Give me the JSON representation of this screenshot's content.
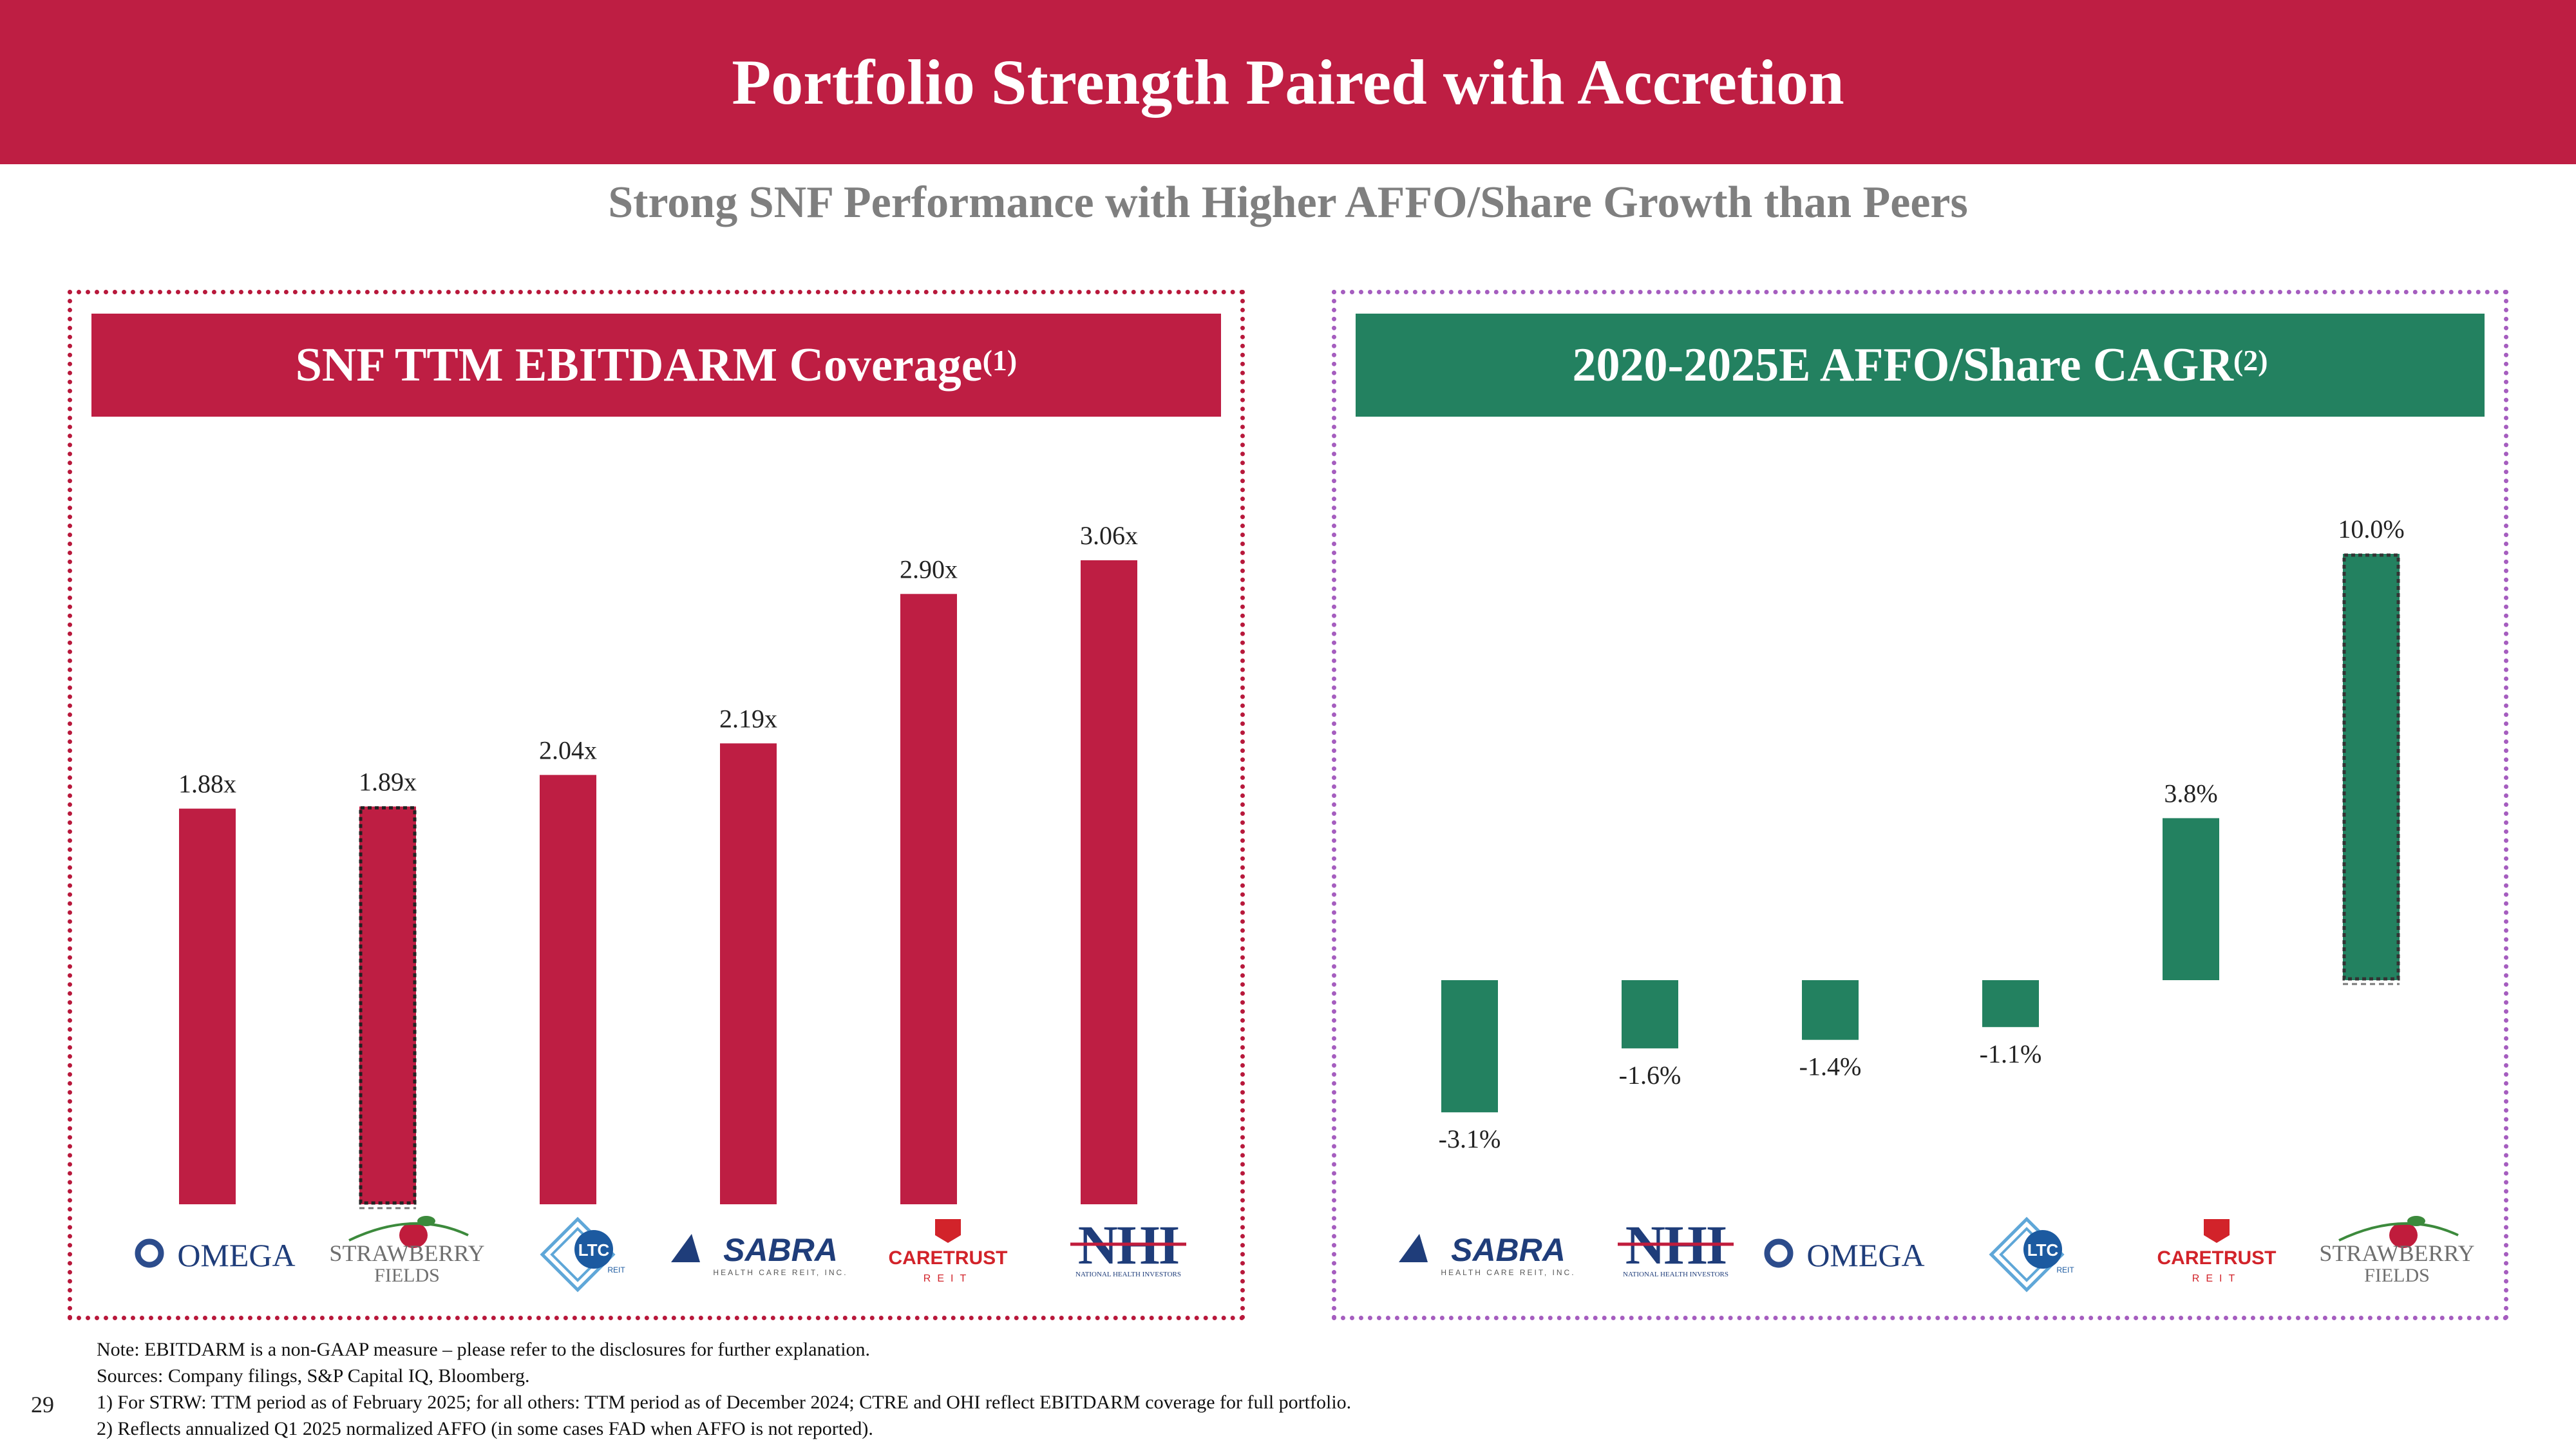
{
  "title": "Portfolio Strength Paired with Accretion",
  "subtitle": "Strong SNF Performance with Higher AFFO/Share Growth than Peers",
  "colors": {
    "banner": "#be1e43",
    "left_bar": "#be1e43",
    "right_bar": "#238160",
    "subtitle": "#7f7f7f"
  },
  "left_panel": {
    "heading": "SNF TTM EBITDARM Coverage",
    "heading_sup": "(1)"
  },
  "right_panel": {
    "heading": "2020-2025E AFFO/Share CAGR",
    "heading_sup": "(2)"
  },
  "chart_data": [
    {
      "type": "bar",
      "title": "SNF TTM EBITDARM Coverage(1)",
      "categories": [
        "OMEGA",
        "STRAWBERRY FIELDS",
        "LTC REIT",
        "SABRA",
        "CARETRUST REIT",
        "NHI"
      ],
      "values": [
        1.88,
        1.89,
        2.04,
        2.19,
        2.9,
        3.06
      ],
      "labels": [
        "1.88x",
        "1.89x",
        "2.04x",
        "2.19x",
        "2.90x",
        "3.06x"
      ],
      "highlight_index": 1,
      "ylim": [
        0,
        3.06
      ],
      "xlabel": "",
      "ylabel": ""
    },
    {
      "type": "bar",
      "title": "2020-2025E AFFO/Share CAGR(2)",
      "categories": [
        "SABRA",
        "NHI",
        "OMEGA",
        "LTC REIT",
        "CARETRUST REIT",
        "STRAWBERRY FIELDS"
      ],
      "values": [
        -3.1,
        -1.6,
        -1.4,
        -1.1,
        3.8,
        10.0
      ],
      "labels": [
        "-3.1%",
        "-1.6%",
        "-1.4%",
        "-1.1%",
        "3.8%",
        "10.0%"
      ],
      "highlight_index": 5,
      "ylim": [
        -3.1,
        10.0
      ],
      "xlabel": "",
      "ylabel": ""
    }
  ],
  "logos": {
    "omega": "OMEGA",
    "strawberry_1": "STRAWBERRY",
    "strawberry_2": "FIELDS",
    "ltc": "LTC",
    "ltc_sub": "REIT",
    "sabra": "SABRA",
    "sabra_sub": "HEALTH CARE REIT, INC.",
    "caretrust": "CARETRUST",
    "caretrust_sub": "REIT",
    "nhi": "NHI",
    "nhi_sub": "NATIONAL HEALTH INVESTORS"
  },
  "notes": [
    "Note: EBITDARM is a non-GAAP measure – please refer to the disclosures for further explanation.",
    "Sources: Company filings, S&P Capital IQ, Bloomberg.",
    "1) For STRW: TTM period as of February 2025; for all others: TTM period as of December 2024; CTRE and OHI reflect EBITDARM coverage for full portfolio.",
    "2) Reflects annualized Q1 2025 normalized AFFO (in some cases FAD when AFFO is not reported)."
  ],
  "page_number": "29"
}
